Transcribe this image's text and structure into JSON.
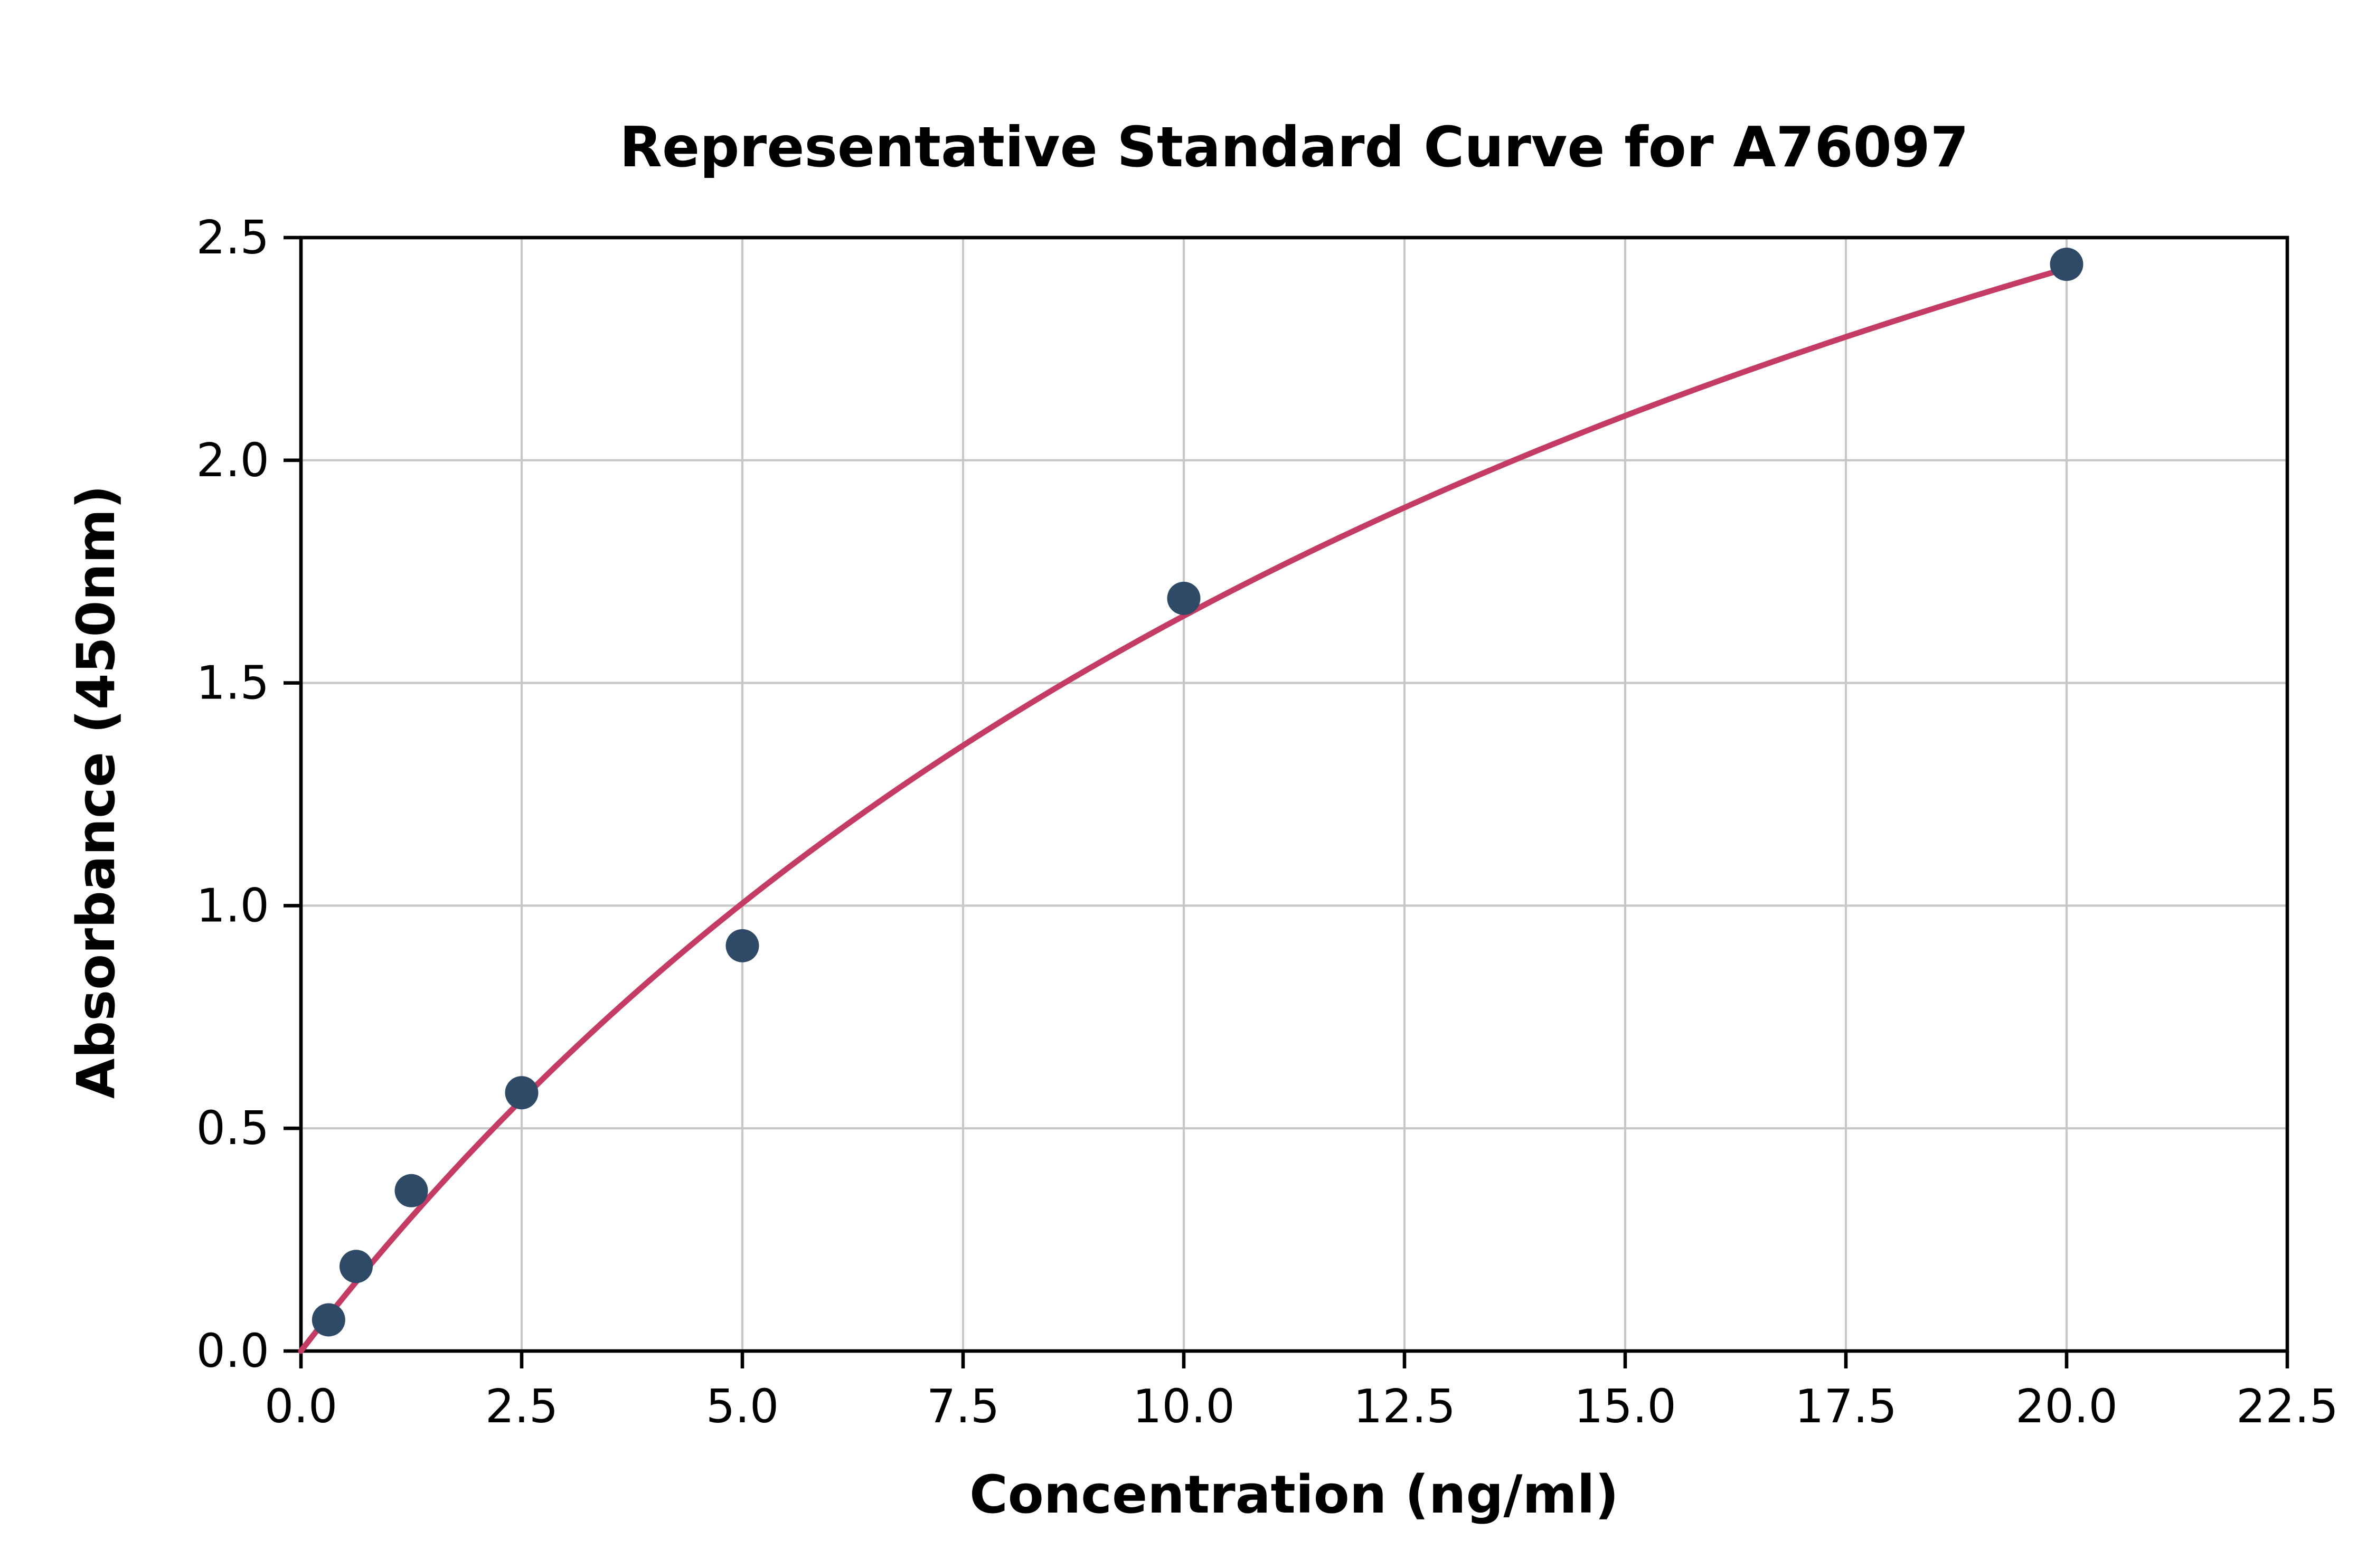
{
  "chart_data": {
    "type": "scatter",
    "title": "Representative Standard Curve for A76097",
    "xlabel": "Concentration (ng/ml)",
    "ylabel": "Absorbance (450nm)",
    "xlim": [
      0,
      22.5
    ],
    "ylim": [
      0,
      2.5
    ],
    "grid": true,
    "legend": "none",
    "xtick_values": [
      0,
      2.5,
      5,
      7.5,
      10,
      12.5,
      15,
      17.5,
      20,
      22.5
    ],
    "xtick_labels": [
      "0.0",
      "2.5",
      "5.0",
      "7.5",
      "10.0",
      "12.5",
      "15.0",
      "17.5",
      "20.0",
      "22.5"
    ],
    "ytick_values": [
      0,
      0.5,
      1.0,
      1.5,
      2.0,
      2.5
    ],
    "ytick_labels": [
      "0.0",
      "0.5",
      "1.0",
      "1.5",
      "2.0",
      "2.5"
    ],
    "points": {
      "x": [
        0.313,
        0.625,
        1.25,
        2.5,
        5,
        10,
        20
      ],
      "y": [
        0.07,
        0.19,
        0.36,
        0.58,
        0.91,
        1.69,
        2.44
      ]
    },
    "fit_curve": {
      "model": "y = Vmax * x / (Km + x)",
      "vmax": 4.61,
      "km": 17.93,
      "x_range": [
        0,
        20.05
      ]
    },
    "colors": {
      "points": "#2e4a66",
      "curve": "#c43b63",
      "grid": "#c7c7c7",
      "axes": "#000000",
      "background": "#ffffff"
    }
  }
}
